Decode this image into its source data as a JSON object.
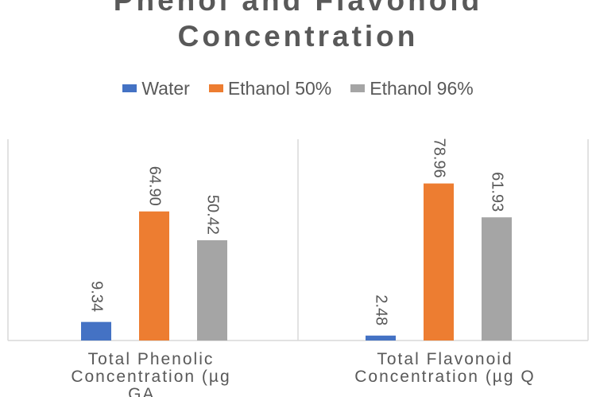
{
  "chart_data": {
    "type": "bar",
    "title_lines": [
      "Phenol and Flavonoid",
      "Concentration"
    ],
    "categories": [
      {
        "line1": "Total Phenolic",
        "line2": "Concentration (µg",
        "line3": "GA..."
      },
      {
        "line1": "Total Flavonoid",
        "line2": "Concentration (µg Q",
        "line3": "..."
      }
    ],
    "series": [
      {
        "name": "Water",
        "color": "#4472C4",
        "values": [
          9.34,
          2.48
        ],
        "labels": [
          "9.34",
          "2.48"
        ]
      },
      {
        "name": "Ethanol 50%",
        "color": "#ED7D31",
        "values": [
          64.9,
          78.96
        ],
        "labels": [
          "64.90",
          "78.96"
        ]
      },
      {
        "name": "Ethanol 96%",
        "color": "#A5A5A5",
        "values": [
          50.42,
          61.93
        ],
        "labels": [
          "50.42",
          "61.93"
        ]
      }
    ],
    "ylim": [
      0,
      100
    ],
    "gridlines": false,
    "legend_position": "top"
  }
}
